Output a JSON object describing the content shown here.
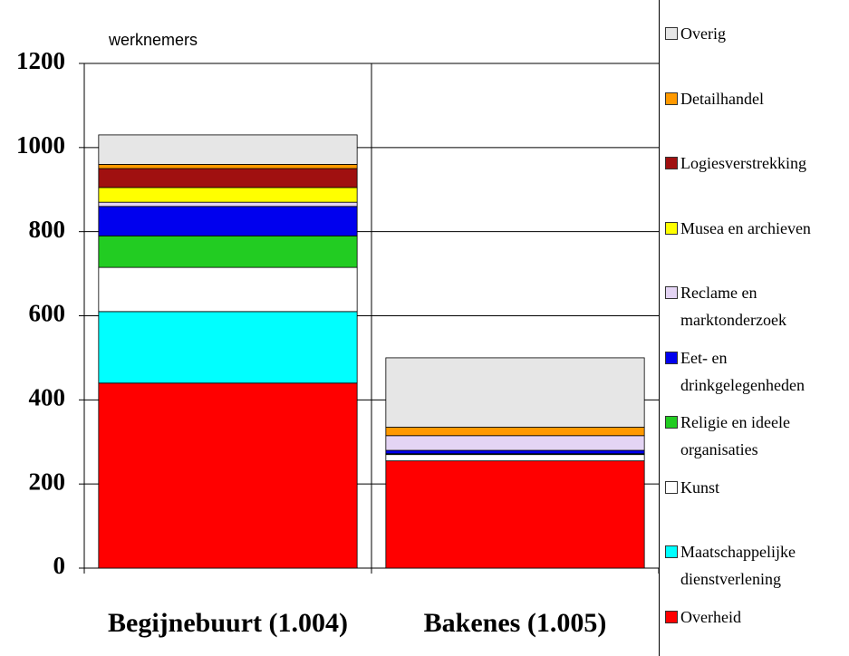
{
  "chart_data": {
    "type": "stacked_bar",
    "ylabel": "werknemers",
    "categories": [
      "Begijnebuurt (1.004)",
      "Bakenes (1.005)"
    ],
    "series": [
      {
        "name": "Overheid",
        "color": "#ff0000",
        "values": [
          440,
          255
        ]
      },
      {
        "name": "Maatschappelijke dienstverlening",
        "color": "#00ffff",
        "values": [
          170,
          0
        ]
      },
      {
        "name": "Kunst",
        "color": "#ffffff",
        "values": [
          105,
          15
        ]
      },
      {
        "name": "Religie en ideele organisaties",
        "color": "#22cc22",
        "values": [
          75,
          2
        ]
      },
      {
        "name": "Eet- en drinkgelegenheden",
        "color": "#0000ee",
        "values": [
          70,
          8
        ]
      },
      {
        "name": "Reclame en marktonderzoek",
        "color": "#e4d4f4",
        "values": [
          10,
          35
        ]
      },
      {
        "name": "Musea en archieven",
        "color": "#ffff00",
        "values": [
          35,
          0
        ]
      },
      {
        "name": "Logiesverstrekking",
        "color": "#a01010",
        "values": [
          45,
          0
        ]
      },
      {
        "name": "Detailhandel",
        "color": "#ff9900",
        "values": [
          10,
          20
        ]
      },
      {
        "name": "Overig",
        "color": "#e6e6e6",
        "values": [
          70,
          165
        ]
      }
    ],
    "ylim": [
      0,
      1200
    ],
    "yticks": [
      0,
      200,
      400,
      600,
      800,
      1000,
      1200
    ],
    "grid": true
  }
}
